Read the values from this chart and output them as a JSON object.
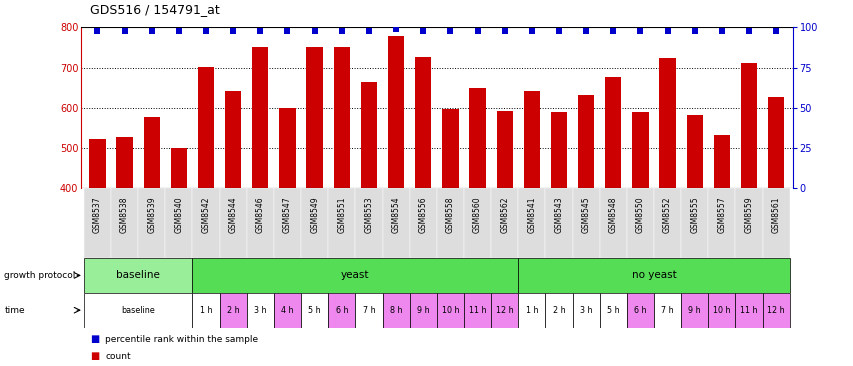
{
  "title": "GDS516 / 154791_at",
  "samples": [
    "GSM8537",
    "GSM8538",
    "GSM8539",
    "GSM8540",
    "GSM8542",
    "GSM8544",
    "GSM8546",
    "GSM8547",
    "GSM8549",
    "GSM8551",
    "GSM8553",
    "GSM8554",
    "GSM8556",
    "GSM8558",
    "GSM8560",
    "GSM8562",
    "GSM8541",
    "GSM8543",
    "GSM8545",
    "GSM8548",
    "GSM8550",
    "GSM8552",
    "GSM8555",
    "GSM8557",
    "GSM8559",
    "GSM8561"
  ],
  "counts": [
    523,
    527,
    578,
    500,
    701,
    643,
    751,
    600,
    752,
    751,
    665,
    780,
    727,
    598,
    649,
    593,
    643,
    590,
    633,
    676,
    590,
    723,
    582,
    534,
    712,
    627
  ],
  "percentiles": [
    98,
    98,
    98,
    98,
    98,
    98,
    98,
    98,
    98,
    98,
    98,
    99,
    98,
    98,
    98,
    98,
    98,
    98,
    98,
    98,
    98,
    98,
    98,
    98,
    98,
    98
  ],
  "ylim_left": [
    400,
    800
  ],
  "ylim_right": [
    0,
    100
  ],
  "yticks_left": [
    400,
    500,
    600,
    700,
    800
  ],
  "yticks_right": [
    0,
    25,
    50,
    75,
    100
  ],
  "bar_color": "#cc0000",
  "dot_color": "#0000cc",
  "bg_color": "#ffffff",
  "growth_groups": [
    {
      "label": "baseline",
      "start": 0,
      "end": 4,
      "color": "#99ee99"
    },
    {
      "label": "yeast",
      "start": 4,
      "end": 16,
      "color": "#55dd55"
    },
    {
      "label": "no yeast",
      "start": 16,
      "end": 26,
      "color": "#55dd55"
    }
  ],
  "time_cells": [
    {
      "start": 0,
      "end": 4,
      "label": "baseline",
      "color": "#ffffff"
    },
    {
      "start": 4,
      "end": 5,
      "label": "1 h",
      "color": "#ffffff"
    },
    {
      "start": 5,
      "end": 6,
      "label": "2 h",
      "color": "#ee88ee"
    },
    {
      "start": 6,
      "end": 7,
      "label": "3 h",
      "color": "#ffffff"
    },
    {
      "start": 7,
      "end": 8,
      "label": "4 h",
      "color": "#ee88ee"
    },
    {
      "start": 8,
      "end": 9,
      "label": "5 h",
      "color": "#ffffff"
    },
    {
      "start": 9,
      "end": 10,
      "label": "6 h",
      "color": "#ee88ee"
    },
    {
      "start": 10,
      "end": 11,
      "label": "7 h",
      "color": "#ffffff"
    },
    {
      "start": 11,
      "end": 12,
      "label": "8 h",
      "color": "#ee88ee"
    },
    {
      "start": 12,
      "end": 13,
      "label": "9 h",
      "color": "#ee88ee"
    },
    {
      "start": 13,
      "end": 14,
      "label": "10 h",
      "color": "#ee88ee"
    },
    {
      "start": 14,
      "end": 15,
      "label": "11 h",
      "color": "#ee88ee"
    },
    {
      "start": 15,
      "end": 16,
      "label": "12 h",
      "color": "#ee88ee"
    },
    {
      "start": 16,
      "end": 17,
      "label": "1 h",
      "color": "#ffffff"
    },
    {
      "start": 17,
      "end": 18,
      "label": "2 h",
      "color": "#ffffff"
    },
    {
      "start": 18,
      "end": 19,
      "label": "3 h",
      "color": "#ffffff"
    },
    {
      "start": 19,
      "end": 20,
      "label": "5 h",
      "color": "#ffffff"
    },
    {
      "start": 20,
      "end": 21,
      "label": "6 h",
      "color": "#ee88ee"
    },
    {
      "start": 21,
      "end": 22,
      "label": "7 h",
      "color": "#ffffff"
    },
    {
      "start": 22,
      "end": 23,
      "label": "9 h",
      "color": "#ee88ee"
    },
    {
      "start": 23,
      "end": 24,
      "label": "10 h",
      "color": "#ee88ee"
    },
    {
      "start": 24,
      "end": 25,
      "label": "11 h",
      "color": "#ee88ee"
    },
    {
      "start": 25,
      "end": 26,
      "label": "12 h",
      "color": "#ee88ee"
    }
  ],
  "legend_count_color": "#cc0000",
  "legend_pct_color": "#0000cc"
}
